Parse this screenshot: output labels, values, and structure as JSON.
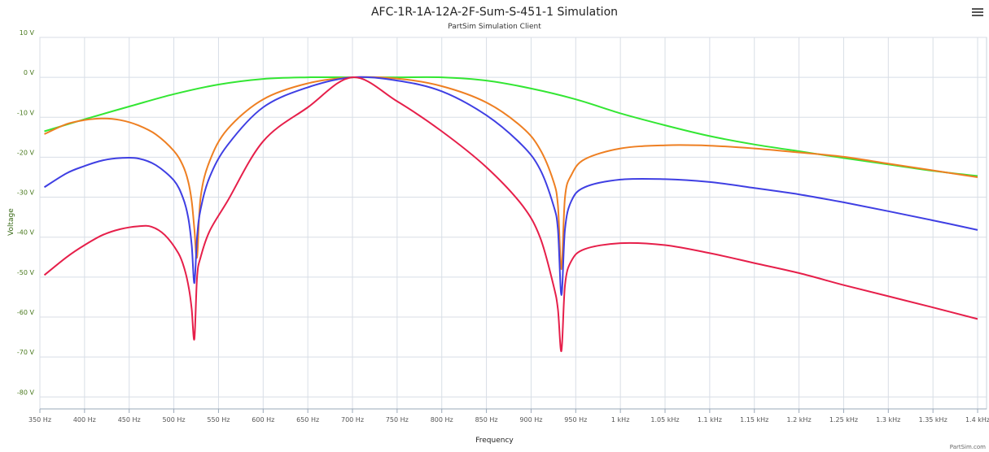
{
  "chart_data": {
    "type": "line",
    "title": "AFC-1R-1A-12A-2F-Sum-S-451-1 Simulation",
    "subtitle": "PartSim Simulation Client",
    "xlabel": "Frequency",
    "ylabel": "Voltage",
    "credit": "PartSim.com",
    "xlim": [
      350,
      1410
    ],
    "ylim": [
      -83,
      10
    ],
    "x_ticks": [
      350,
      400,
      450,
      500,
      550,
      600,
      650,
      700,
      750,
      800,
      850,
      900,
      950,
      1000,
      1050,
      1100,
      1150,
      1200,
      1250,
      1300,
      1350,
      1400
    ],
    "x_tick_labels": [
      "350 Hz",
      "400 Hz",
      "450 Hz",
      "500 Hz",
      "550 Hz",
      "600 Hz",
      "650 Hz",
      "700 Hz",
      "750 Hz",
      "800 Hz",
      "850 Hz",
      "900 Hz",
      "950 Hz",
      "1 kHz",
      "1.05 kHz",
      "1.1 kHz",
      "1.15 kHz",
      "1.2 kHz",
      "1.25 kHz",
      "1.3 kHz",
      "1.35 kHz",
      "1.4 kHz"
    ],
    "y_ticks": [
      10,
      0,
      -10,
      -20,
      -30,
      -40,
      -50,
      -60,
      -70,
      -80
    ],
    "y_tick_labels": [
      "10 V",
      "0 V",
      "-10 V",
      "-20 V",
      "-30 V",
      "-40 V",
      "-50 V",
      "-60 V",
      "-70 V",
      "-80 V"
    ],
    "grid": true,
    "series": [
      {
        "color": "#33e633",
        "x": [
          355,
          400,
          450,
          500,
          550,
          600,
          650,
          700,
          750,
          800,
          850,
          900,
          950,
          1000,
          1050,
          1100,
          1150,
          1200,
          1250,
          1300,
          1350,
          1400
        ],
        "values": [
          -13.5,
          -10.5,
          -7.3,
          -4.2,
          -1.8,
          -0.4,
          0,
          0,
          0,
          0,
          -0.8,
          -2.8,
          -5.5,
          -9,
          -12,
          -14.7,
          -16.8,
          -18.5,
          -20.2,
          -21.8,
          -23.4,
          -24.7
        ]
      },
      {
        "color": "#ee7f22",
        "x": [
          355,
          380,
          400,
          420,
          440,
          460,
          480,
          500,
          510,
          516,
          520,
          523,
          526,
          530,
          540,
          560,
          600,
          650,
          700,
          750,
          800,
          850,
          890,
          910,
          925,
          930,
          934,
          938,
          945,
          960,
          1000,
          1050,
          1100,
          1150,
          1200,
          1250,
          1300,
          1350,
          1400
        ],
        "values": [
          -14.2,
          -11.7,
          -10.7,
          -10.3,
          -10.7,
          -12,
          -14.3,
          -18.4,
          -22,
          -26,
          -31,
          -38,
          -45,
          -30,
          -21,
          -13,
          -5.5,
          -1.5,
          0,
          -0.3,
          -2.2,
          -6.3,
          -12.5,
          -18,
          -26,
          -32,
          -48,
          -30,
          -24.5,
          -20.5,
          -17.8,
          -17,
          -17.1,
          -17.8,
          -18.8,
          -19.9,
          -21.6,
          -23.3,
          -25
        ]
      },
      {
        "color": "#3f3fe3",
        "x": [
          355,
          380,
          400,
          420,
          440,
          460,
          480,
          500,
          510,
          516,
          520,
          523,
          526,
          530,
          540,
          560,
          600,
          650,
          700,
          750,
          800,
          850,
          890,
          910,
          925,
          930,
          934,
          938,
          945,
          960,
          1000,
          1050,
          1100,
          1150,
          1200,
          1250,
          1300,
          1350,
          1400
        ],
        "values": [
          -27.5,
          -24,
          -22.2,
          -20.8,
          -20.2,
          -20.3,
          -22,
          -25.8,
          -30,
          -35,
          -42,
          -51.5,
          -40,
          -33,
          -25,
          -17,
          -7.5,
          -2.5,
          0,
          -0.8,
          -3.5,
          -9.5,
          -17,
          -23,
          -32,
          -38,
          -54.5,
          -38,
          -31,
          -27.5,
          -25.6,
          -25.5,
          -26.2,
          -27.7,
          -29.3,
          -31.3,
          -33.5,
          -35.8,
          -38.2
        ]
      },
      {
        "color": "#e61f4a",
        "x": [
          355,
          380,
          400,
          420,
          440,
          460,
          475,
          490,
          505,
          512,
          517,
          520,
          523,
          526,
          530,
          540,
          560,
          600,
          650,
          700,
          750,
          800,
          850,
          890,
          910,
          925,
          930,
          934,
          938,
          945,
          960,
          1000,
          1050,
          1100,
          1150,
          1200,
          1250,
          1300,
          1350,
          1400
        ],
        "values": [
          -49.5,
          -45,
          -42,
          -39.5,
          -38,
          -37.3,
          -37.4,
          -39.5,
          -44,
          -48,
          -53,
          -58,
          -65.5,
          -50,
          -45,
          -38.5,
          -31,
          -16,
          -7.5,
          0,
          -6,
          -13.5,
          -22.5,
          -32,
          -40,
          -52,
          -58,
          -68.5,
          -52,
          -46,
          -43,
          -41.5,
          -42,
          -44,
          -46.5,
          -49,
          -52,
          -54.8,
          -57.6,
          -60.5
        ]
      }
    ]
  }
}
